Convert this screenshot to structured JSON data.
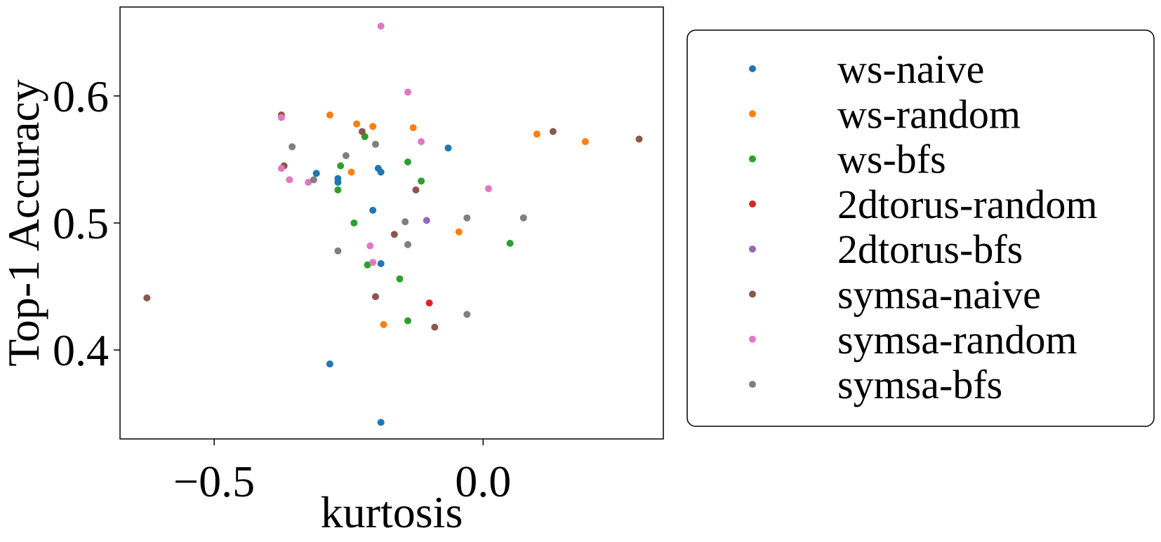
{
  "chart_data": {
    "type": "scatter",
    "title": "",
    "xlabel": "kurtosis",
    "ylabel": "Top-1 Accuracy",
    "xlim": [
      -0.675,
      0.335
    ],
    "ylim": [
      0.33,
      0.67
    ],
    "xticks": [
      -0.5,
      0.0
    ],
    "xtick_labels": [
      "−0.5",
      "0.0"
    ],
    "yticks": [
      0.4,
      0.5,
      0.6
    ],
    "ytick_labels": [
      "0.4",
      "0.5",
      "0.6"
    ],
    "grid": false,
    "legend_position": "right",
    "series": [
      {
        "name": "ws-naive",
        "color": "#1f77b4",
        "points": [
          [
            -0.31,
            0.539
          ],
          [
            -0.27,
            0.535
          ],
          [
            -0.27,
            0.532
          ],
          [
            -0.195,
            0.543
          ],
          [
            -0.19,
            0.54
          ],
          [
            -0.065,
            0.559
          ],
          [
            -0.205,
            0.51
          ],
          [
            -0.19,
            0.468
          ],
          [
            -0.285,
            0.389
          ],
          [
            -0.19,
            0.343
          ]
        ]
      },
      {
        "name": "ws-random",
        "color": "#ff7f0e",
        "points": [
          [
            -0.285,
            0.585
          ],
          [
            -0.235,
            0.578
          ],
          [
            -0.205,
            0.576
          ],
          [
            -0.22,
            0.568
          ],
          [
            -0.13,
            0.575
          ],
          [
            -0.245,
            0.54
          ],
          [
            0.1,
            0.57
          ],
          [
            0.19,
            0.564
          ],
          [
            -0.045,
            0.493
          ],
          [
            -0.185,
            0.42
          ]
        ]
      },
      {
        "name": "ws-bfs",
        "color": "#2ca02c",
        "points": [
          [
            -0.22,
            0.568
          ],
          [
            -0.265,
            0.545
          ],
          [
            -0.14,
            0.548
          ],
          [
            -0.115,
            0.533
          ],
          [
            -0.27,
            0.526
          ],
          [
            -0.24,
            0.5
          ],
          [
            0.05,
            0.484
          ],
          [
            -0.215,
            0.467
          ],
          [
            -0.155,
            0.456
          ],
          [
            -0.14,
            0.423
          ]
        ]
      },
      {
        "name": "2dtorus-random",
        "color": "#d62728",
        "points": [
          [
            -0.1,
            0.437
          ]
        ]
      },
      {
        "name": "2dtorus-bfs",
        "color": "#9467bd",
        "points": [
          [
            -0.105,
            0.502
          ]
        ]
      },
      {
        "name": "symsa-naive",
        "color": "#8c564b",
        "points": [
          [
            -0.375,
            0.585
          ],
          [
            -0.37,
            0.545
          ],
          [
            -0.225,
            0.572
          ],
          [
            0.13,
            0.572
          ],
          [
            0.29,
            0.566
          ],
          [
            -0.125,
            0.526
          ],
          [
            -0.165,
            0.491
          ],
          [
            -0.2,
            0.442
          ],
          [
            -0.09,
            0.418
          ],
          [
            -0.625,
            0.441
          ]
        ]
      },
      {
        "name": "symsa-random",
        "color": "#e377c2",
        "points": [
          [
            -0.19,
            0.655
          ],
          [
            -0.14,
            0.603
          ],
          [
            -0.375,
            0.583
          ],
          [
            -0.115,
            0.564
          ],
          [
            -0.375,
            0.543
          ],
          [
            -0.36,
            0.534
          ],
          [
            -0.325,
            0.532
          ],
          [
            0.01,
            0.527
          ],
          [
            -0.21,
            0.482
          ],
          [
            -0.205,
            0.469
          ]
        ]
      },
      {
        "name": "symsa-bfs",
        "color": "#7f7f7f",
        "points": [
          [
            -0.355,
            0.56
          ],
          [
            -0.2,
            0.562
          ],
          [
            -0.255,
            0.553
          ],
          [
            -0.315,
            0.534
          ],
          [
            -0.145,
            0.501
          ],
          [
            -0.03,
            0.504
          ],
          [
            0.075,
            0.504
          ],
          [
            -0.14,
            0.483
          ],
          [
            -0.27,
            0.478
          ],
          [
            -0.03,
            0.428
          ]
        ]
      }
    ]
  }
}
